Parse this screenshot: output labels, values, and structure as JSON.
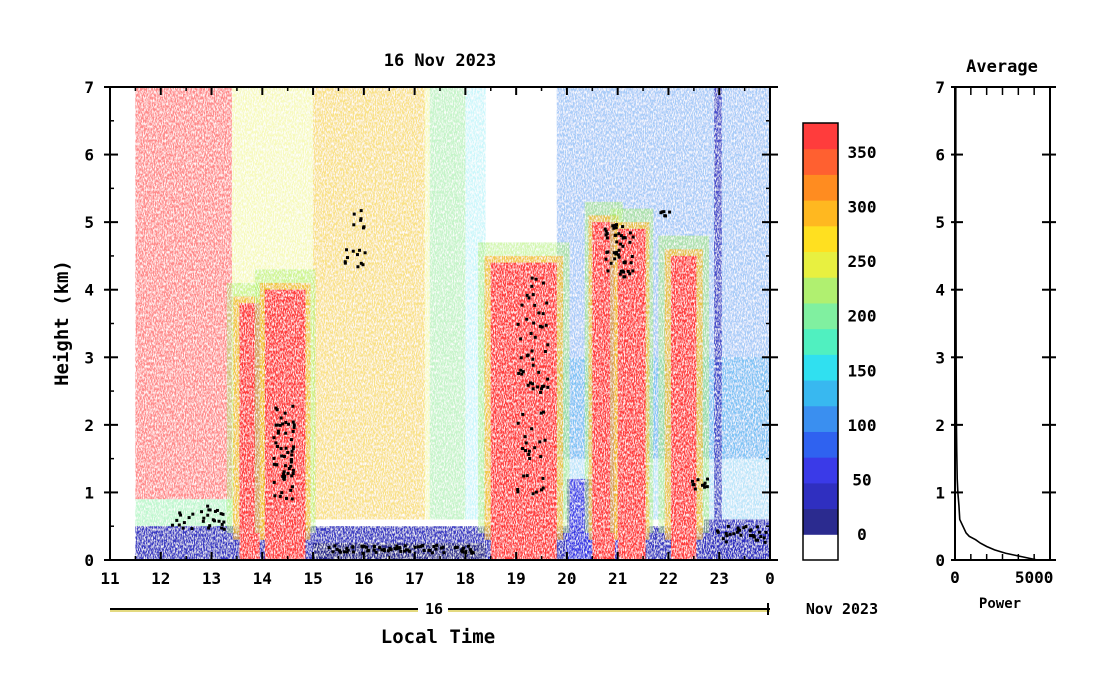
{
  "chart_data": [
    {
      "type": "heatmap",
      "title": "16 Nov 2023",
      "xlabel": "Local Time",
      "ylabel": "Height (km)",
      "x_ticks": [
        "11",
        "12",
        "13",
        "14",
        "15",
        "16",
        "17",
        "18",
        "19",
        "20",
        "21",
        "22",
        "23",
        "0"
      ],
      "y_ticks": [
        "0",
        "1",
        "2",
        "3",
        "4",
        "5",
        "6",
        "7"
      ],
      "xlim": [
        11,
        24
      ],
      "ylim": [
        0,
        7
      ],
      "date_bar": {
        "day": "16",
        "month_year": "Nov 2023"
      },
      "colorbar": {
        "ticks": [
          "0",
          "50",
          "100",
          "150",
          "200",
          "250",
          "300",
          "350"
        ],
        "range": [
          0,
          380
        ],
        "colors": [
          "#ffffff",
          "#2b2b8f",
          "#2f2fc0",
          "#3a3ae8",
          "#2f62f0",
          "#3a8ff0",
          "#38b8f0",
          "#30e0f0",
          "#50f0c0",
          "#80f0a0",
          "#b0f070",
          "#e8f040",
          "#ffe020",
          "#ffb820",
          "#ff8c20",
          "#ff6030",
          "#ff3c3c"
        ]
      },
      "features": [
        {
          "name": "red-haze",
          "x": [
            11.5,
            13.4
          ],
          "y": [
            0.9,
            7.0
          ]
        },
        {
          "name": "rain-column",
          "x": [
            13.55,
            14.85
          ],
          "y": [
            0.0,
            4.0
          ]
        },
        {
          "name": "rain-column",
          "x": [
            18.5,
            19.75
          ],
          "y": [
            0.0,
            4.4
          ]
        },
        {
          "name": "rain-column",
          "x": [
            20.5,
            21.6
          ],
          "y": [
            0.0,
            5.0
          ]
        },
        {
          "name": "rain-column",
          "x": [
            22.0,
            22.55
          ],
          "y": [
            1.0,
            4.5
          ]
        },
        {
          "name": "boundary-layer",
          "x": [
            11.5,
            24.0
          ],
          "y": [
            0.0,
            0.5
          ]
        }
      ]
    },
    {
      "type": "line",
      "title": "Average",
      "xlabel": "Power",
      "x_ticks": [
        "0",
        "5000"
      ],
      "y_ticks": [
        "0",
        "1",
        "2",
        "3",
        "4",
        "5",
        "6",
        "7"
      ],
      "xlim": [
        0,
        6000
      ],
      "ylim": [
        0,
        7
      ],
      "series": [
        {
          "x": [
            5200,
            4200,
            3200,
            2500,
            2000,
            1600,
            1300,
            900,
            700,
            500,
            300,
            250,
            180,
            140,
            110,
            90,
            80,
            70,
            60,
            55,
            50
          ],
          "y": [
            0.0,
            0.05,
            0.1,
            0.15,
            0.2,
            0.25,
            0.3,
            0.35,
            0.4,
            0.5,
            0.6,
            0.8,
            1.0,
            1.2,
            1.6,
            2.0,
            2.5,
            3.0,
            4.0,
            5.0,
            7.0
          ]
        }
      ]
    }
  ]
}
